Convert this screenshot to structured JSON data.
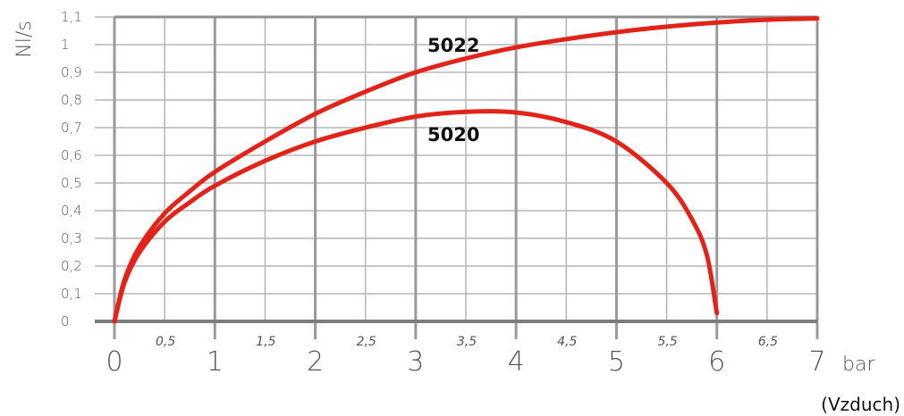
{
  "chart_data": {
    "type": "line",
    "ylabel": "Nl/s",
    "xlabel": "bar",
    "note": "(Vzduch)",
    "xlim": [
      0,
      7
    ],
    "ylim": [
      0,
      1.1
    ],
    "x_major_ticks": [
      "0",
      "1",
      "2",
      "3",
      "4",
      "5",
      "6",
      "7"
    ],
    "x_minor_ticks": [
      "0,5",
      "1,5",
      "2,5",
      "3,5",
      "4,5",
      "5,5",
      "6,5"
    ],
    "y_ticks": [
      "0",
      "0,1",
      "0,2",
      "0,3",
      "0,4",
      "0,5",
      "0,6",
      "0,7",
      "0,8",
      "0,9",
      "1",
      "1,1"
    ],
    "grid": true,
    "line_color": "#e2231a",
    "series": [
      {
        "name": "5022",
        "x": [
          0,
          0.1,
          0.25,
          0.5,
          0.75,
          1,
          1.5,
          2,
          2.5,
          3,
          3.5,
          4,
          4.5,
          5,
          5.5,
          6,
          6.5,
          7
        ],
        "y": [
          0,
          0.15,
          0.27,
          0.39,
          0.47,
          0.54,
          0.65,
          0.75,
          0.83,
          0.9,
          0.95,
          0.99,
          1.02,
          1.045,
          1.065,
          1.08,
          1.09,
          1.095
        ]
      },
      {
        "name": "5020",
        "x": [
          0,
          0.1,
          0.25,
          0.5,
          0.75,
          1,
          1.5,
          2,
          2.5,
          3,
          3.5,
          4,
          4.5,
          5,
          5.5,
          5.75,
          5.9,
          6
        ],
        "y": [
          0,
          0.14,
          0.25,
          0.36,
          0.43,
          0.49,
          0.58,
          0.65,
          0.7,
          0.74,
          0.757,
          0.755,
          0.72,
          0.65,
          0.5,
          0.37,
          0.24,
          0.03
        ]
      }
    ]
  }
}
